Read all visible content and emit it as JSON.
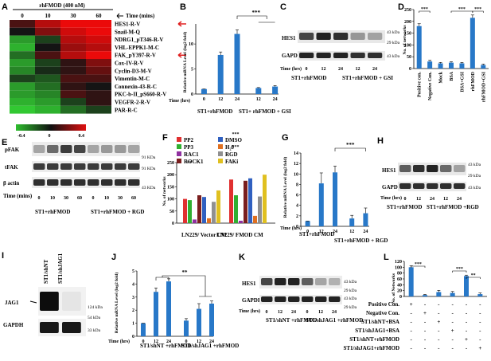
{
  "panels": {
    "A": {
      "letter": "A",
      "top_label": "rhFMOD (400 nM)",
      "time_cols": [
        "0",
        "10",
        "30",
        "60"
      ],
      "time_label": "Time (mins)",
      "rows": [
        "HES1-R-V",
        "Snail-M-Q",
        "NDRG1_pT346-R-V",
        "VHL-EPPK1-M-C",
        "FAK_pY397-R-V",
        "Cox-IV-R-V",
        "Cyclin-D3-M-V",
        "Vimentin-M-C",
        "Connexin-43-R-C",
        "PKC-b-II_pS660-R-V",
        "VEGFR-2-R-V",
        "PAR-R-C"
      ],
      "scale": [
        "-0.4",
        "0",
        "0.4"
      ],
      "values": [
        [
          0.1,
          0.3,
          0.45,
          0.5
        ],
        [
          0.0,
          0.2,
          0.35,
          0.4
        ],
        [
          -0.3,
          -0.1,
          0.3,
          0.35
        ],
        [
          -0.35,
          0.0,
          0.25,
          0.3
        ],
        [
          -0.2,
          0.1,
          0.3,
          0.4
        ],
        [
          -0.3,
          -0.1,
          0.05,
          0.2
        ],
        [
          -0.25,
          -0.05,
          0.05,
          0.15
        ],
        [
          -0.1,
          -0.15,
          0.1,
          0.1
        ],
        [
          -0.3,
          -0.2,
          0.05,
          0.0
        ],
        [
          -0.3,
          -0.25,
          0.1,
          0.05
        ],
        [
          -0.35,
          -0.3,
          -0.1,
          0.05
        ],
        [
          -0.4,
          -0.35,
          -0.2,
          -0.1
        ]
      ],
      "arrow_rows": [
        "HES1-R-V",
        "FAK_pY397-R-V"
      ]
    },
    "B": {
      "letter": "B",
      "ylabel": "Relative mRNA Level (log2 fold)",
      "time_label": "Time (hrs)",
      "sig": "***",
      "groups": [
        "ST1+rhFMOD",
        "ST1+ rhFMOD + GSI"
      ]
    },
    "C": {
      "letter": "C",
      "bands": [
        "HES1",
        "GAPDH"
      ],
      "kda": [
        "43 kDa",
        "29 kDa",
        "43 kDa"
      ],
      "time_label": "Time (hrs)",
      "ticks": [
        "0",
        "12",
        "24",
        "12",
        "24"
      ],
      "groups": [
        "ST1+rhFMOD",
        "ST1+rhFMOD + GSI"
      ]
    },
    "D": {
      "letter": "D",
      "ylabel": "No. of networks",
      "sig": [
        "***",
        "***",
        "***"
      ]
    },
    "E": {
      "letter": "E",
      "bands": [
        "pFAK",
        "tFAK",
        "β actin"
      ],
      "kda": [
        "91 KDa",
        "91 KDa",
        "43 KDa"
      ],
      "time_label": "Time (mins)",
      "ticks": [
        "0",
        "10",
        "30",
        "60",
        "0",
        "10",
        "30",
        "60"
      ],
      "groups": [
        "ST1+rhFMOD",
        "ST1+rhFMOD + RGD"
      ]
    },
    "F": {
      "letter": "F",
      "ylabel": "No. of networks",
      "legend": [
        "PP2",
        "DMSO",
        "PP3",
        "H₂0",
        "RAC1",
        "RGD",
        "ROCK1",
        "FAKi"
      ],
      "groups": [
        "LN229/ Vector CM",
        "LN229/ FMOD CM"
      ],
      "sig": [
        "**",
        "***",
        "***"
      ]
    },
    "G": {
      "letter": "G",
      "ylabel": "Relative mRNA Level (log2 fold)",
      "time_label": "Time (hrs)",
      "sig": "***",
      "groups": [
        "ST1+rhFMOD",
        "ST1+rhFMOD + RGD"
      ]
    },
    "H": {
      "letter": "H",
      "bands": [
        "HES1",
        "GAPDH"
      ],
      "kda": [
        "43 kDa",
        "29 kDa",
        "43 kDa"
      ],
      "time_label": "Time (hrs)",
      "ticks": [
        "0",
        "12",
        "24",
        "12",
        "24"
      ],
      "groups": [
        "ST1+rhFMOD",
        "ST1+rhFMOD +RGD"
      ]
    },
    "I": {
      "letter": "I",
      "lanes": [
        "ST1/shNT",
        "ST1/shJAG1"
      ],
      "bands": [
        "JAG1",
        "GAPDH"
      ],
      "kda": [
        "124 kDa",
        "54 kDa",
        "33 kDa"
      ]
    },
    "J": {
      "letter": "J",
      "ylabel": "Relative mRNA Level (log2 fold)",
      "time_label": "Time (hrs)",
      "sig": "**",
      "groups": [
        "ST1/shNT +rhFMOD",
        "ST1/shJAG1 +rhFMOD"
      ]
    },
    "K": {
      "letter": "K",
      "bands": [
        "HES1",
        "GAPDH"
      ],
      "kda": [
        "43 kDa",
        "29 kDa",
        "43 kDa",
        "29 kDa"
      ],
      "time_label": "Time (hrs)",
      "ticks": [
        "0",
        "12",
        "24",
        "0",
        "12",
        "24"
      ],
      "groups": [
        "ST1/shNT +rhFMOD",
        "ST1/shJAG1 +rhFMOD"
      ]
    },
    "L": {
      "letter": "L",
      "ylabel": "No. of Networks",
      "sig": [
        "***",
        "***",
        "**"
      ],
      "rows": [
        "Positive Con.",
        "Negative Con.",
        "ST1/shNT+BSA",
        "ST1/shJAG1+BSA",
        "ST1/shNT+rhFMOD",
        "ST1/shJAG1+rhFMOD"
      ]
    }
  },
  "chart_data": [
    {
      "type": "bar",
      "panel": "B",
      "x": [
        "0",
        "12",
        "24",
        "12",
        "24"
      ],
      "values": [
        1,
        7.8,
        12,
        1.2,
        1.5
      ],
      "ylim": [
        0,
        14
      ],
      "yticks": [
        "0",
        "5",
        "10"
      ],
      "ylabel": "Relative mRNA Level (log2 fold)",
      "title": ""
    },
    {
      "type": "bar",
      "panel": "D",
      "categories": [
        "Positive con.",
        "Negative Con.",
        "Mock",
        "BSA",
        "BSA+GSI",
        "rhFMOD",
        "rhFMOD+GSI"
      ],
      "values": [
        180,
        30,
        22,
        25,
        22,
        215,
        15
      ],
      "ylim": [
        0,
        250
      ],
      "yticks": [
        "0",
        "50",
        "100",
        "150",
        "200",
        "250"
      ],
      "ylabel": "No. of networks",
      "title": ""
    },
    {
      "type": "bar",
      "panel": "F",
      "categories": [
        "LN229/ Vector CM",
        "LN229/ FMOD CM"
      ],
      "series": [
        {
          "name": "PP2",
          "values": [
            100,
            180
          ]
        },
        {
          "name": "DMSO",
          "values": [
            108,
            185
          ]
        },
        {
          "name": "PP3",
          "values": [
            95,
            115
          ]
        },
        {
          "name": "H₂0",
          "values": [
            20,
            30
          ]
        },
        {
          "name": "RAC1",
          "values": [
            15,
            10
          ]
        },
        {
          "name": "RGD",
          "values": [
            88,
            110
          ]
        },
        {
          "name": "ROCK1",
          "values": [
            115,
            175
          ]
        },
        {
          "name": "FAKi",
          "values": [
            135,
            200
          ]
        }
      ],
      "ylim": [
        0,
        250
      ],
      "yticks": [
        "0",
        "50",
        "100",
        "150",
        "200",
        "250"
      ],
      "ylabel": "No. of networks",
      "title": ""
    },
    {
      "type": "bar",
      "panel": "G",
      "x": [
        "0",
        "12",
        "24",
        "12",
        "24"
      ],
      "values": [
        1,
        8.2,
        10.3,
        1.5,
        2.5
      ],
      "ylim": [
        0,
        14
      ],
      "yticks": [
        "0",
        "2",
        "4",
        "6",
        "8",
        "10",
        "12",
        "14"
      ],
      "ylabel": "Relative mRNA Level (log2 fold)",
      "title": ""
    },
    {
      "type": "bar",
      "panel": "J",
      "x": [
        "0",
        "12",
        "24",
        "0",
        "12",
        "24"
      ],
      "values": [
        1,
        3.4,
        4.2,
        1.2,
        2.1,
        2.5
      ],
      "ylim": [
        0,
        5
      ],
      "yticks": [
        "0",
        "1",
        "2",
        "3",
        "4",
        "5"
      ],
      "ylabel": "Relative mRNA Level (log2 fold)",
      "title": ""
    },
    {
      "type": "bar",
      "panel": "L",
      "categories": [
        "Positive Con.",
        "Negative Con.",
        "ST1/shNT+BSA",
        "ST1/shJAG1+BSA",
        "ST1/shNT+rhFMOD",
        "ST1/shJAG1+rhFMOD"
      ],
      "values": [
        100,
        5,
        15,
        12,
        70,
        8
      ],
      "ylim": [
        0,
        120
      ],
      "yticks": [
        "0",
        "20",
        "40",
        "60",
        "80",
        "100",
        "120"
      ],
      "ylabel": "No. of Networks",
      "title": ""
    }
  ]
}
